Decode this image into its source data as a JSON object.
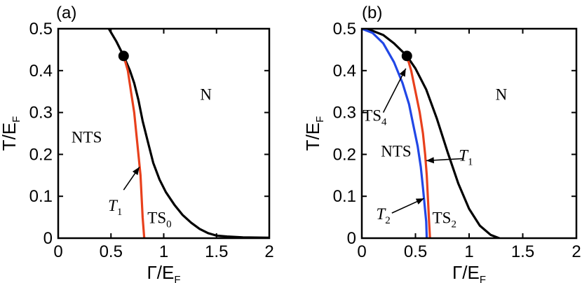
{
  "chart_data": [
    {
      "panel": "(a)",
      "type": "line",
      "xlabel": "Γ/E",
      "xlabel_sub": "F",
      "ylabel": "T/E",
      "ylabel_sub": "F",
      "xlim": [
        0,
        2
      ],
      "ylim": [
        0,
        0.5
      ],
      "x_ticks": [
        0,
        0.5,
        1,
        1.5,
        2
      ],
      "x_tick_labels": [
        "0",
        "0.5",
        "1",
        "1.5",
        "2"
      ],
      "y_ticks": [
        0,
        0.1,
        0.2,
        0.3,
        0.4,
        0.5
      ],
      "y_tick_labels": [
        "0",
        "0.1",
        "0.2",
        "0.3",
        "0.4",
        "0.5"
      ],
      "series": [
        {
          "name": "black",
          "color": "#000000",
          "points": [
            [
              0.48,
              0.5
            ],
            [
              0.55,
              0.47
            ],
            [
              0.62,
              0.435
            ],
            [
              0.68,
              0.4
            ],
            [
              0.72,
              0.37
            ],
            [
              0.76,
              0.33
            ],
            [
              0.8,
              0.28
            ],
            [
              0.85,
              0.23
            ],
            [
              0.9,
              0.18
            ],
            [
              0.96,
              0.14
            ],
            [
              1.02,
              0.11
            ],
            [
              1.1,
              0.08
            ],
            [
              1.18,
              0.055
            ],
            [
              1.26,
              0.037
            ],
            [
              1.34,
              0.022
            ],
            [
              1.42,
              0.012
            ],
            [
              1.5,
              0.006
            ],
            [
              1.6,
              0.004
            ],
            [
              1.75,
              0.002
            ],
            [
              2.0,
              0.001
            ]
          ]
        },
        {
          "name": "T1",
          "color": "#e8401c",
          "points": [
            [
              0.62,
              0.435
            ],
            [
              0.66,
              0.4
            ],
            [
              0.69,
              0.35
            ],
            [
              0.72,
              0.3
            ],
            [
              0.74,
              0.25
            ],
            [
              0.76,
              0.2
            ],
            [
              0.78,
              0.15
            ],
            [
              0.79,
              0.1
            ],
            [
              0.8,
              0.05
            ],
            [
              0.815,
              0.0
            ]
          ]
        }
      ],
      "critical_point": {
        "x": 0.62,
        "y": 0.435
      },
      "regions": [
        {
          "text": "N",
          "x": 1.4,
          "y": 0.33
        },
        {
          "text": "NTS",
          "x": 0.27,
          "y": 0.228
        },
        {
          "text": "TS",
          "sub": "0",
          "x": 0.96,
          "y": 0.036
        }
      ],
      "annotations": [
        {
          "text": "T",
          "sub": "1",
          "label_x": 0.54,
          "label_y": 0.065,
          "arrow_from": [
            0.62,
            0.115
          ],
          "arrow_to": [
            0.77,
            0.17
          ]
        }
      ]
    },
    {
      "panel": "(b)",
      "type": "line",
      "xlabel": "Γ/E",
      "xlabel_sub": "F",
      "ylabel": "T/E",
      "ylabel_sub": "F",
      "xlim": [
        0,
        2
      ],
      "ylim": [
        0,
        0.5
      ],
      "x_ticks": [
        0,
        0.5,
        1,
        1.5,
        2
      ],
      "x_tick_labels": [
        "0",
        "0.5",
        "1",
        "1.5",
        "2"
      ],
      "y_ticks": [
        0,
        0.1,
        0.2,
        0.3,
        0.4,
        0.5
      ],
      "y_tick_labels": [
        "0",
        "0.1",
        "0.2",
        "0.3",
        "0.4",
        "0.5"
      ],
      "series": [
        {
          "name": "black",
          "color": "#000000",
          "points": [
            [
              0.0,
              0.5
            ],
            [
              0.1,
              0.495
            ],
            [
              0.2,
              0.485
            ],
            [
              0.3,
              0.465
            ],
            [
              0.42,
              0.435
            ],
            [
              0.5,
              0.405
            ],
            [
              0.6,
              0.355
            ],
            [
              0.7,
              0.285
            ],
            [
              0.8,
              0.205
            ],
            [
              0.9,
              0.13
            ],
            [
              1.0,
              0.07
            ],
            [
              1.1,
              0.03
            ],
            [
              1.2,
              0.008
            ],
            [
              1.28,
              0.0
            ]
          ]
        },
        {
          "name": "T1",
          "color": "#e8401c",
          "points": [
            [
              0.42,
              0.435
            ],
            [
              0.46,
              0.4
            ],
            [
              0.5,
              0.35
            ],
            [
              0.54,
              0.3
            ],
            [
              0.57,
              0.25
            ],
            [
              0.59,
              0.2
            ],
            [
              0.605,
              0.15
            ],
            [
              0.615,
              0.1
            ],
            [
              0.625,
              0.05
            ],
            [
              0.635,
              0.0
            ]
          ]
        },
        {
          "name": "T2",
          "color": "#2147e6",
          "points": [
            [
              0.0,
              0.5
            ],
            [
              0.1,
              0.49
            ],
            [
              0.2,
              0.465
            ],
            [
              0.3,
              0.42
            ],
            [
              0.38,
              0.37
            ],
            [
              0.44,
              0.32
            ],
            [
              0.48,
              0.27
            ],
            [
              0.52,
              0.22
            ],
            [
              0.55,
              0.17
            ],
            [
              0.57,
              0.12
            ],
            [
              0.585,
              0.08
            ],
            [
              0.6,
              0.04
            ],
            [
              0.605,
              0.0
            ]
          ]
        }
      ],
      "critical_point": {
        "x": 0.42,
        "y": 0.435
      },
      "regions": [
        {
          "text": "N",
          "x": 1.3,
          "y": 0.33
        },
        {
          "text": "NTS",
          "x": 0.32,
          "y": 0.195
        },
        {
          "text": "TS",
          "sub": "2",
          "x": 0.77,
          "y": 0.036
        }
      ],
      "annotations": [
        {
          "text": "TS",
          "sub": "4",
          "label_x": 0.12,
          "label_y": 0.28,
          "arrow_from": [
            0.2,
            0.3
          ],
          "arrow_to": [
            0.41,
            0.405
          ]
        },
        {
          "text": "T",
          "sub": "1",
          "label_x": 0.97,
          "label_y": 0.185,
          "arrow_from": [
            0.95,
            0.19
          ],
          "arrow_to": [
            0.6,
            0.185
          ]
        },
        {
          "text": "T",
          "sub": "2",
          "label_x": 0.2,
          "label_y": 0.045,
          "arrow_from": [
            0.28,
            0.06
          ],
          "arrow_to": [
            0.58,
            0.095
          ]
        }
      ]
    }
  ]
}
